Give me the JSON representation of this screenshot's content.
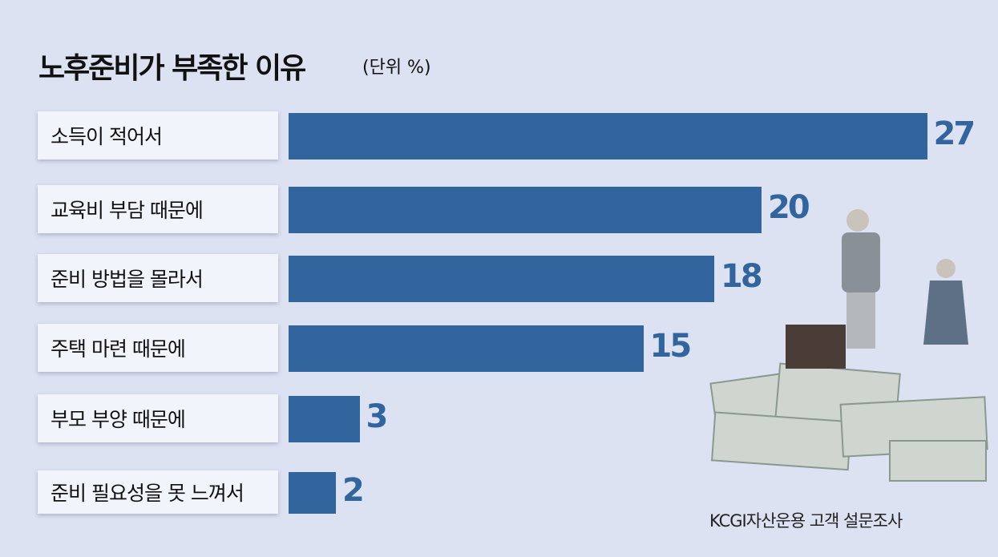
{
  "chart_data": {
    "type": "bar",
    "orientation": "horizontal",
    "title": "노후준비가 부족한 이유",
    "unit": "(단위 %)",
    "categories": [
      "소득이 적어서",
      "교육비 부담 때문에",
      "준비 방법을 몰라서",
      "주택 마련 때문에",
      "부모 부양 때문에",
      "준비 필요성을 못 느껴서"
    ],
    "values": [
      27,
      20,
      18,
      15,
      3,
      2
    ],
    "bar_color": "#32649e",
    "source": "KCGI자산운용 고객 설문조사"
  }
}
